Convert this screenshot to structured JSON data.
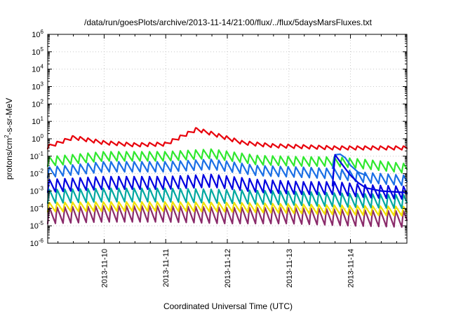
{
  "chart_data": {
    "type": "line",
    "title": "/data/run/goesPlots/archive/2013-11-14/21:00/flux/../flux/5daysMarsFluxes.txt",
    "xlabel": "Coordinated Universal Time (UTC)",
    "ylabel_parts": [
      "protons/cm",
      "2",
      "-s-sr-MeV"
    ],
    "x_scale": "time",
    "y_scale": "log",
    "xlim": [
      "2013-11-09T02:00",
      "2013-11-14T22:00"
    ],
    "ylim_exponents": [
      -6,
      6
    ],
    "ylim": [
      1e-06,
      1000000.0
    ],
    "x_ticks": [
      "2013-11-10",
      "2013-11-11",
      "2013-11-12",
      "2013-11-13",
      "2013-11-14"
    ],
    "y_ticks": [
      {
        "base": "10",
        "exp": "-6"
      },
      {
        "base": "10",
        "exp": "-5"
      },
      {
        "base": "10",
        "exp": "-4"
      },
      {
        "base": "10",
        "exp": "-3"
      },
      {
        "base": "10",
        "exp": "-2"
      },
      {
        "base": "10",
        "exp": "-1"
      },
      {
        "base": "10",
        "exp": "0"
      },
      {
        "base": "10",
        "exp": "1"
      },
      {
        "base": "10",
        "exp": "2"
      },
      {
        "base": "10",
        "exp": "3"
      },
      {
        "base": "10",
        "exp": "4"
      },
      {
        "base": "10",
        "exp": "5"
      },
      {
        "base": "10",
        "exp": "6"
      }
    ],
    "grid": true,
    "legend": "none",
    "sawtooth_period_hours": 3,
    "series": [
      {
        "color": "#e8000b",
        "x": [
          "2013-11-09T02:00",
          "2013-11-09T12:00",
          "2013-11-10T00:00",
          "2013-11-10T12:00",
          "2013-11-11T00:00",
          "2013-11-11T12:00",
          "2013-11-11T18:00",
          "2013-11-12T06:00",
          "2013-11-12T18:00",
          "2013-11-13T06:00",
          "2013-11-13T18:00",
          "2013-11-14T06:00",
          "2013-11-14T22:00"
        ],
        "y": [
          0.35,
          1.2,
          0.6,
          0.45,
          0.5,
          3.5,
          2.0,
          0.6,
          0.4,
          0.35,
          0.3,
          0.3,
          0.3
        ],
        "amp_decades": 0.22
      },
      {
        "color": "#2ee82e",
        "x": [
          "2013-11-09T02:00",
          "2013-11-10T00:00",
          "2013-11-11T00:00",
          "2013-11-11T18:00",
          "2013-11-12T12:00",
          "2013-11-13T06:00",
          "2013-11-13T18:00",
          "2013-11-14T06:00",
          "2013-11-14T22:00"
        ],
        "y": [
          0.05,
          0.1,
          0.1,
          0.14,
          0.06,
          0.05,
          0.05,
          0.035,
          0.02
        ],
        "amp_decades": 0.55
      },
      {
        "color": "#1a6fe6",
        "x": [
          "2013-11-09T02:00",
          "2013-11-10T00:00",
          "2013-11-11T00:00",
          "2013-11-11T18:00",
          "2013-11-12T12:00",
          "2013-11-13T06:00",
          "2013-11-13T18:00",
          "2013-11-14T06:00",
          "2013-11-14T22:00"
        ],
        "y": [
          0.012,
          0.025,
          0.025,
          0.035,
          0.015,
          0.012,
          0.01,
          0.006,
          0.004
        ],
        "amp_decades": 0.6
      },
      {
        "color": "#0000e0",
        "x": [
          "2013-11-09T02:00",
          "2013-11-10T00:00",
          "2013-11-11T00:00",
          "2013-11-11T18:00",
          "2013-11-12T12:00",
          "2013-11-13T06:00",
          "2013-11-13T18:00",
          "2013-11-14T06:00",
          "2013-11-14T22:00"
        ],
        "y": [
          0.002,
          0.003,
          0.003,
          0.004,
          0.002,
          0.0015,
          0.0015,
          0.001,
          0.0008
        ],
        "amp_decades": 0.75
      },
      {
        "color": "#00a8a0",
        "x": [
          "2013-11-09T02:00",
          "2013-11-10T00:00",
          "2013-11-11T00:00",
          "2013-11-12T00:00",
          "2013-11-13T00:00",
          "2013-11-14T00:00",
          "2013-11-14T22:00"
        ],
        "y": [
          0.0005,
          0.0006,
          0.0006,
          0.0005,
          0.0004,
          0.0003,
          0.00025
        ],
        "amp_decades": 0.8
      },
      {
        "color": "#f0e000",
        "x": [
          "2013-11-09T02:00",
          "2013-11-10T00:00",
          "2013-11-11T00:00",
          "2013-11-12T00:00",
          "2013-11-13T00:00",
          "2013-11-14T00:00",
          "2013-11-14T22:00"
        ],
        "y": [
          0.00012,
          0.00013,
          0.00013,
          0.00012,
          0.0001,
          8e-05,
          7e-05
        ],
        "amp_decades": 0.55
      },
      {
        "color": "#8a2a6a",
        "x": [
          "2013-11-09T02:00",
          "2013-11-10T00:00",
          "2013-11-11T00:00",
          "2013-11-12T00:00",
          "2013-11-13T00:00",
          "2013-11-14T00:00",
          "2013-11-14T22:00"
        ],
        "y": [
          4e-05,
          5e-05,
          5e-05,
          4e-05,
          4e-05,
          3e-05,
          2.5e-05
        ],
        "amp_decades": 0.95
      }
    ],
    "overlay_lines": [
      {
        "color": "#1a6fe6",
        "x": [
          "2013-11-13T17:00",
          "2013-11-13T18:00",
          "2013-11-13T20:00",
          "2013-11-13T22:00",
          "2013-11-14T00:00",
          "2013-11-14T03:00",
          "2013-11-14T06:00"
        ],
        "y": [
          0.02,
          0.12,
          0.13,
          0.08,
          0.03,
          0.012,
          0.008
        ]
      },
      {
        "color": "#0000e0",
        "x": [
          "2013-11-13T17:00",
          "2013-11-13T18:00",
          "2013-11-13T21:00",
          "2013-11-14T00:00",
          "2013-11-14T03:00",
          "2013-11-14T06:00",
          "2013-11-14T12:00",
          "2013-11-14T22:00"
        ],
        "y": [
          0.002,
          0.12,
          0.03,
          0.008,
          0.003,
          0.0015,
          0.001,
          0.0008
        ]
      }
    ]
  }
}
